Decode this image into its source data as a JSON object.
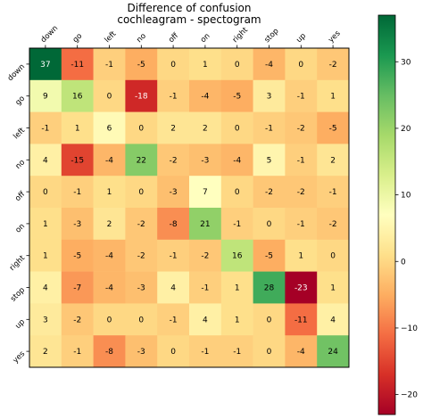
{
  "chart_data": {
    "type": "heatmap",
    "title_line1": "Difference of confusion",
    "title_line2": "cochleagram - spectogram",
    "x_labels": [
      "down",
      "go",
      "left",
      "no",
      "off",
      "on",
      "right",
      "stop",
      "up",
      "yes"
    ],
    "y_labels": [
      "down",
      "go",
      "left",
      "no",
      "off",
      "on",
      "right",
      "stop",
      "up",
      "yes"
    ],
    "values": [
      [
        37,
        -11,
        -1,
        -5,
        0,
        1,
        0,
        -4,
        0,
        -2
      ],
      [
        9,
        16,
        0,
        -18,
        -1,
        -4,
        -5,
        3,
        -1,
        1
      ],
      [
        -1,
        1,
        6,
        0,
        2,
        2,
        0,
        -1,
        -2,
        -5
      ],
      [
        4,
        -15,
        -4,
        22,
        -2,
        -3,
        -4,
        5,
        -1,
        2
      ],
      [
        0,
        -1,
        1,
        0,
        -3,
        7,
        0,
        -2,
        -2,
        -1
      ],
      [
        1,
        -3,
        2,
        -2,
        -8,
        21,
        -1,
        0,
        -1,
        -2
      ],
      [
        1,
        -5,
        -4,
        -2,
        -1,
        -2,
        16,
        -5,
        1,
        0
      ],
      [
        4,
        -7,
        -4,
        -3,
        4,
        -1,
        1,
        28,
        -23,
        1
      ],
      [
        3,
        -2,
        0,
        0,
        -1,
        4,
        1,
        0,
        -11,
        4
      ],
      [
        2,
        -1,
        -8,
        -3,
        0,
        -1,
        -1,
        0,
        -4,
        24
      ]
    ],
    "colormap": "RdYlGn",
    "vmin": -23,
    "vmax": 37,
    "colorbar_ticks": [
      30,
      20,
      10,
      0,
      -10,
      -20
    ],
    "grid": false
  }
}
